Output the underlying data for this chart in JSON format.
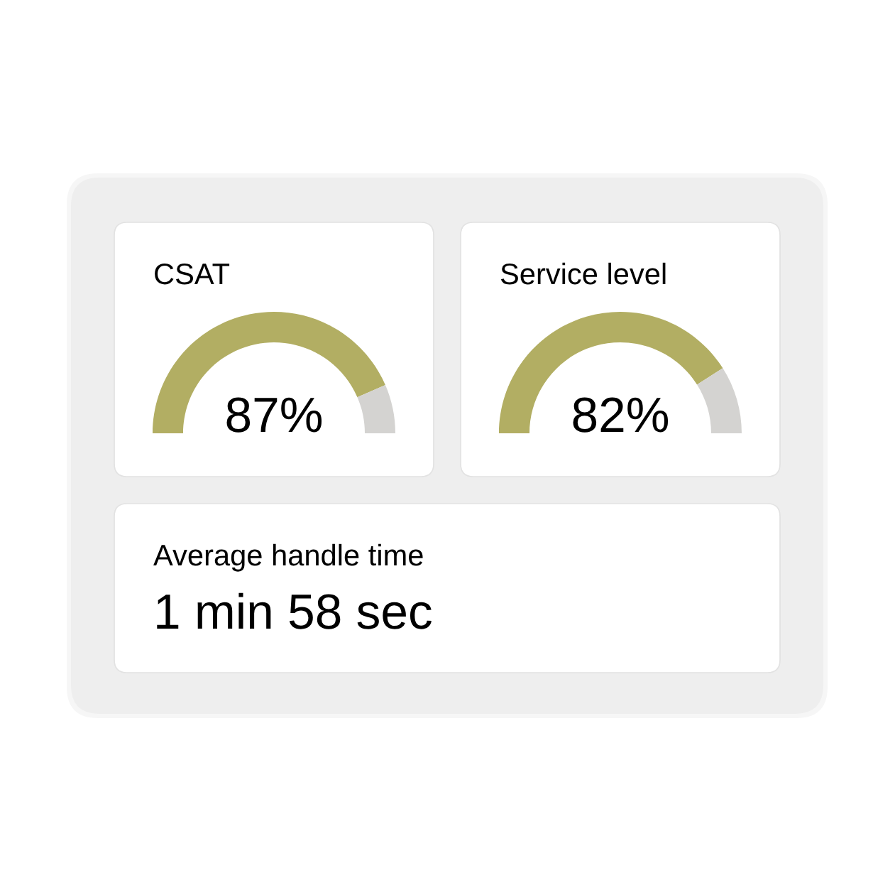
{
  "chart_data": [
    {
      "type": "donut",
      "title": "CSAT",
      "categories": [
        null,
        null
      ],
      "values": [
        87,
        13
      ],
      "colors": [
        "#b2ae63",
        "#d4d3d1"
      ],
      "value_labels": [
        "87%",
        null
      ]
    },
    {
      "type": "donut",
      "title": "Service level",
      "categories": [
        null,
        null
      ],
      "values": [
        82,
        18
      ],
      "colors": [
        "#b2ae63",
        "#d4d3d1"
      ],
      "value_labels": [
        "82%",
        null
      ]
    },
    {
      "type": "other",
      "title": "Average handle time",
      "annotations": [
        "1 min 58 sec"
      ]
    }
  ]
}
